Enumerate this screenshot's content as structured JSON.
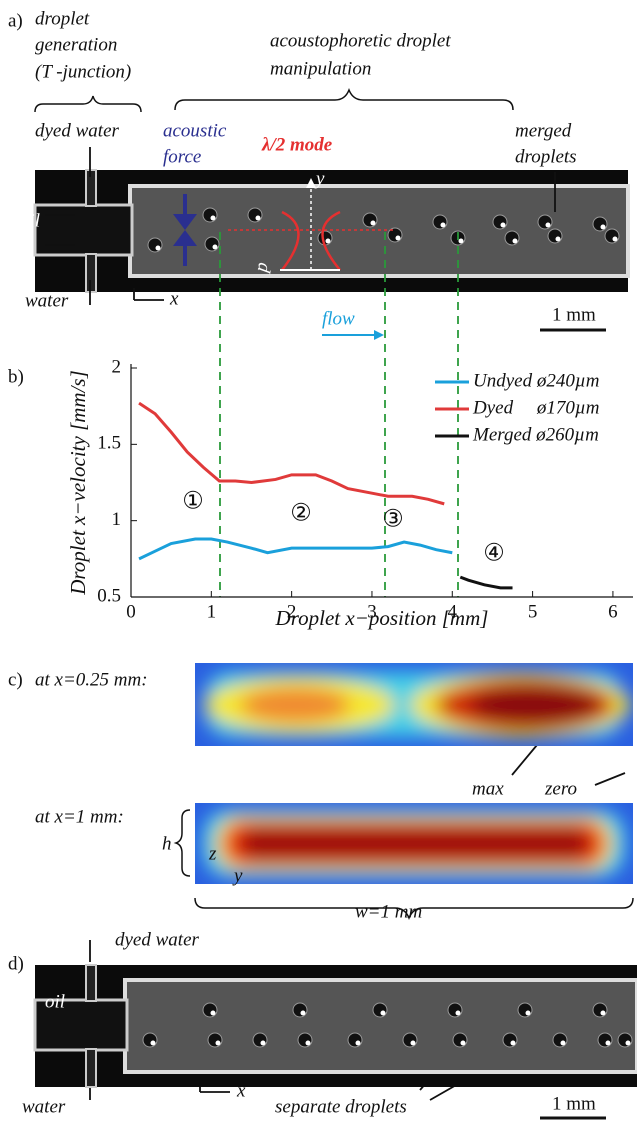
{
  "panel_a": {
    "label": "a)",
    "generation": [
      "droplet",
      "generation",
      "(T -junction)"
    ],
    "manipulation": [
      "acoustophoretic droplet",
      "manipulation"
    ],
    "dyed_water": "dyed water",
    "acoustic_force": [
      "acoustic",
      "force"
    ],
    "mode": "λ/2 mode",
    "merged": [
      "merged",
      "droplets"
    ],
    "oil": "oil",
    "water": "water",
    "x": "x",
    "y": "y",
    "p": "p",
    "flow": "flow",
    "scale": "1 mm"
  },
  "chart_data": {
    "type": "line",
    "label": "b)",
    "y_label": "Droplet x−velocity  [mm/s]",
    "x_label": "Droplet x−position  [mm]",
    "xlim": [
      0,
      6.25
    ],
    "xticks": [
      0,
      1,
      2,
      3,
      4,
      5,
      6
    ],
    "ylim": [
      0.5,
      2
    ],
    "yticks": [
      0.5,
      1,
      1.5,
      2
    ],
    "legend": "upper right",
    "series": [
      {
        "name": "Undyed ø240µm",
        "color": "#1aa0db",
        "x": [
          0.1,
          0.3,
          0.5,
          0.8,
          1.0,
          1.2,
          1.5,
          1.7,
          2.0,
          2.3,
          2.6,
          3.0,
          3.2,
          3.4,
          3.6,
          3.8,
          4.0
        ],
        "values": [
          0.75,
          0.8,
          0.85,
          0.88,
          0.88,
          0.86,
          0.82,
          0.79,
          0.82,
          0.82,
          0.82,
          0.82,
          0.83,
          0.86,
          0.84,
          0.81,
          0.79
        ]
      },
      {
        "name": "Dyed     ø170µm",
        "color": "#e03a3a",
        "x": [
          0.1,
          0.3,
          0.5,
          0.7,
          0.9,
          1.1,
          1.3,
          1.5,
          1.8,
          2.0,
          2.3,
          2.5,
          2.7,
          3.0,
          3.2,
          3.5,
          3.7,
          3.9
        ],
        "values": [
          1.77,
          1.7,
          1.58,
          1.45,
          1.35,
          1.26,
          1.26,
          1.25,
          1.27,
          1.3,
          1.3,
          1.26,
          1.21,
          1.18,
          1.16,
          1.16,
          1.14,
          1.11
        ]
      },
      {
        "name": "Merged ø260µm",
        "color": "#111111",
        "x": [
          4.1,
          4.2,
          4.4,
          4.6,
          4.75
        ],
        "values": [
          0.63,
          0.61,
          0.58,
          0.56,
          0.56
        ]
      }
    ],
    "annotations": [
      "①",
      "②",
      "③",
      "④"
    ]
  },
  "panel_c": {
    "label": "c)",
    "top": "at x=0.25 mm:",
    "max": "max",
    "zero": "zero",
    "bottom": "at x=1 mm:",
    "h": "h",
    "z": "z",
    "y": "y",
    "w": "w=1 mm"
  },
  "panel_d": {
    "label": "d)",
    "dyed_water": "dyed water",
    "oil": "oil",
    "water": "water",
    "x": "x",
    "separate": "separate droplets",
    "scale": "1 mm"
  }
}
